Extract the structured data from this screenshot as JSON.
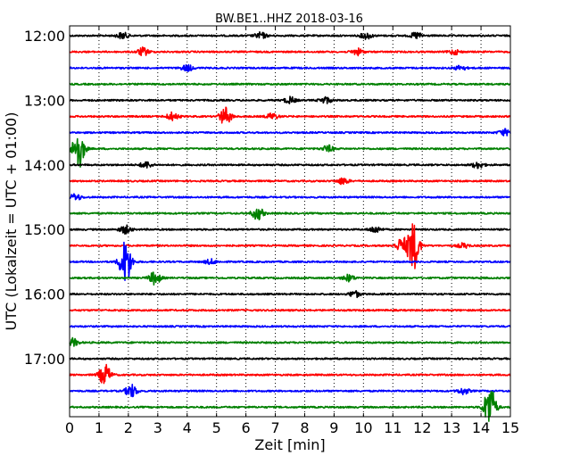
{
  "chart_data": {
    "type": "line",
    "title": "BW.BE1..HHZ 2018-03-16",
    "xlabel": "Zeit  [min]",
    "ylabel": "UTC (Lokalzeit = UTC + 01:00)",
    "xlim": [
      0,
      15
    ],
    "x_ticks": [
      "0",
      "1",
      "2",
      "3",
      "4",
      "5",
      "6",
      "7",
      "8",
      "9",
      "10",
      "11",
      "12",
      "13",
      "14",
      "15"
    ],
    "y_ticks": [
      "12:00",
      "13:00",
      "14:00",
      "15:00",
      "16:00",
      "17:00"
    ],
    "grid": true,
    "trace_colors": [
      "#000000",
      "#ff0000",
      "#0000ff",
      "#008000"
    ],
    "traces": [
      {
        "start": "12:00",
        "events": [
          [
            1.8,
            0.4
          ],
          [
            6.5,
            0.4
          ],
          [
            10.1,
            0.4
          ],
          [
            11.8,
            0.4
          ]
        ]
      },
      {
        "start": "12:15",
        "events": [
          [
            2.5,
            0.5
          ],
          [
            9.8,
            0.4
          ],
          [
            13.1,
            0.3
          ]
        ]
      },
      {
        "start": "12:30",
        "events": [
          [
            4.0,
            0.4
          ],
          [
            13.3,
            0.3
          ]
        ]
      },
      {
        "start": "12:45",
        "events": []
      },
      {
        "start": "13:00",
        "events": [
          [
            7.5,
            0.4
          ],
          [
            8.7,
            0.4
          ]
        ]
      },
      {
        "start": "13:15",
        "events": [
          [
            3.5,
            0.5
          ],
          [
            5.3,
            1.1
          ],
          [
            6.9,
            0.4
          ]
        ]
      },
      {
        "start": "13:30",
        "events": [
          [
            14.8,
            0.4
          ]
        ]
      },
      {
        "start": "13:45",
        "events": [
          [
            0.3,
            2.5
          ],
          [
            8.8,
            0.4
          ]
        ]
      },
      {
        "start": "14:00",
        "events": [
          [
            2.6,
            0.4
          ],
          [
            13.9,
            0.4
          ]
        ]
      },
      {
        "start": "14:15",
        "events": [
          [
            9.3,
            0.4
          ]
        ]
      },
      {
        "start": "14:30",
        "events": [
          [
            0.2,
            0.4
          ]
        ]
      },
      {
        "start": "14:45",
        "events": [
          [
            6.4,
            0.8
          ]
        ]
      },
      {
        "start": "15:00",
        "events": [
          [
            1.9,
            0.5
          ],
          [
            10.4,
            0.4
          ]
        ]
      },
      {
        "start": "15:15",
        "events": [
          [
            11.7,
            3.0
          ],
          [
            11.3,
            0.9
          ],
          [
            13.4,
            0.3
          ]
        ]
      },
      {
        "start": "15:30",
        "events": [
          [
            1.9,
            2.8
          ],
          [
            4.8,
            0.3
          ]
        ]
      },
      {
        "start": "15:45",
        "events": [
          [
            2.9,
            0.8
          ],
          [
            9.5,
            0.4
          ]
        ]
      },
      {
        "start": "16:00",
        "events": [
          [
            9.7,
            0.4
          ]
        ]
      },
      {
        "start": "16:15",
        "events": []
      },
      {
        "start": "16:30",
        "events": []
      },
      {
        "start": "16:45",
        "events": [
          [
            0.1,
            0.5
          ]
        ]
      },
      {
        "start": "17:00",
        "events": []
      },
      {
        "start": "17:15",
        "events": [
          [
            1.2,
            1.3
          ]
        ]
      },
      {
        "start": "17:30",
        "events": [
          [
            2.1,
            0.8
          ],
          [
            13.4,
            0.4
          ]
        ]
      },
      {
        "start": "17:45",
        "events": [
          [
            14.3,
            2.7
          ]
        ]
      }
    ]
  }
}
